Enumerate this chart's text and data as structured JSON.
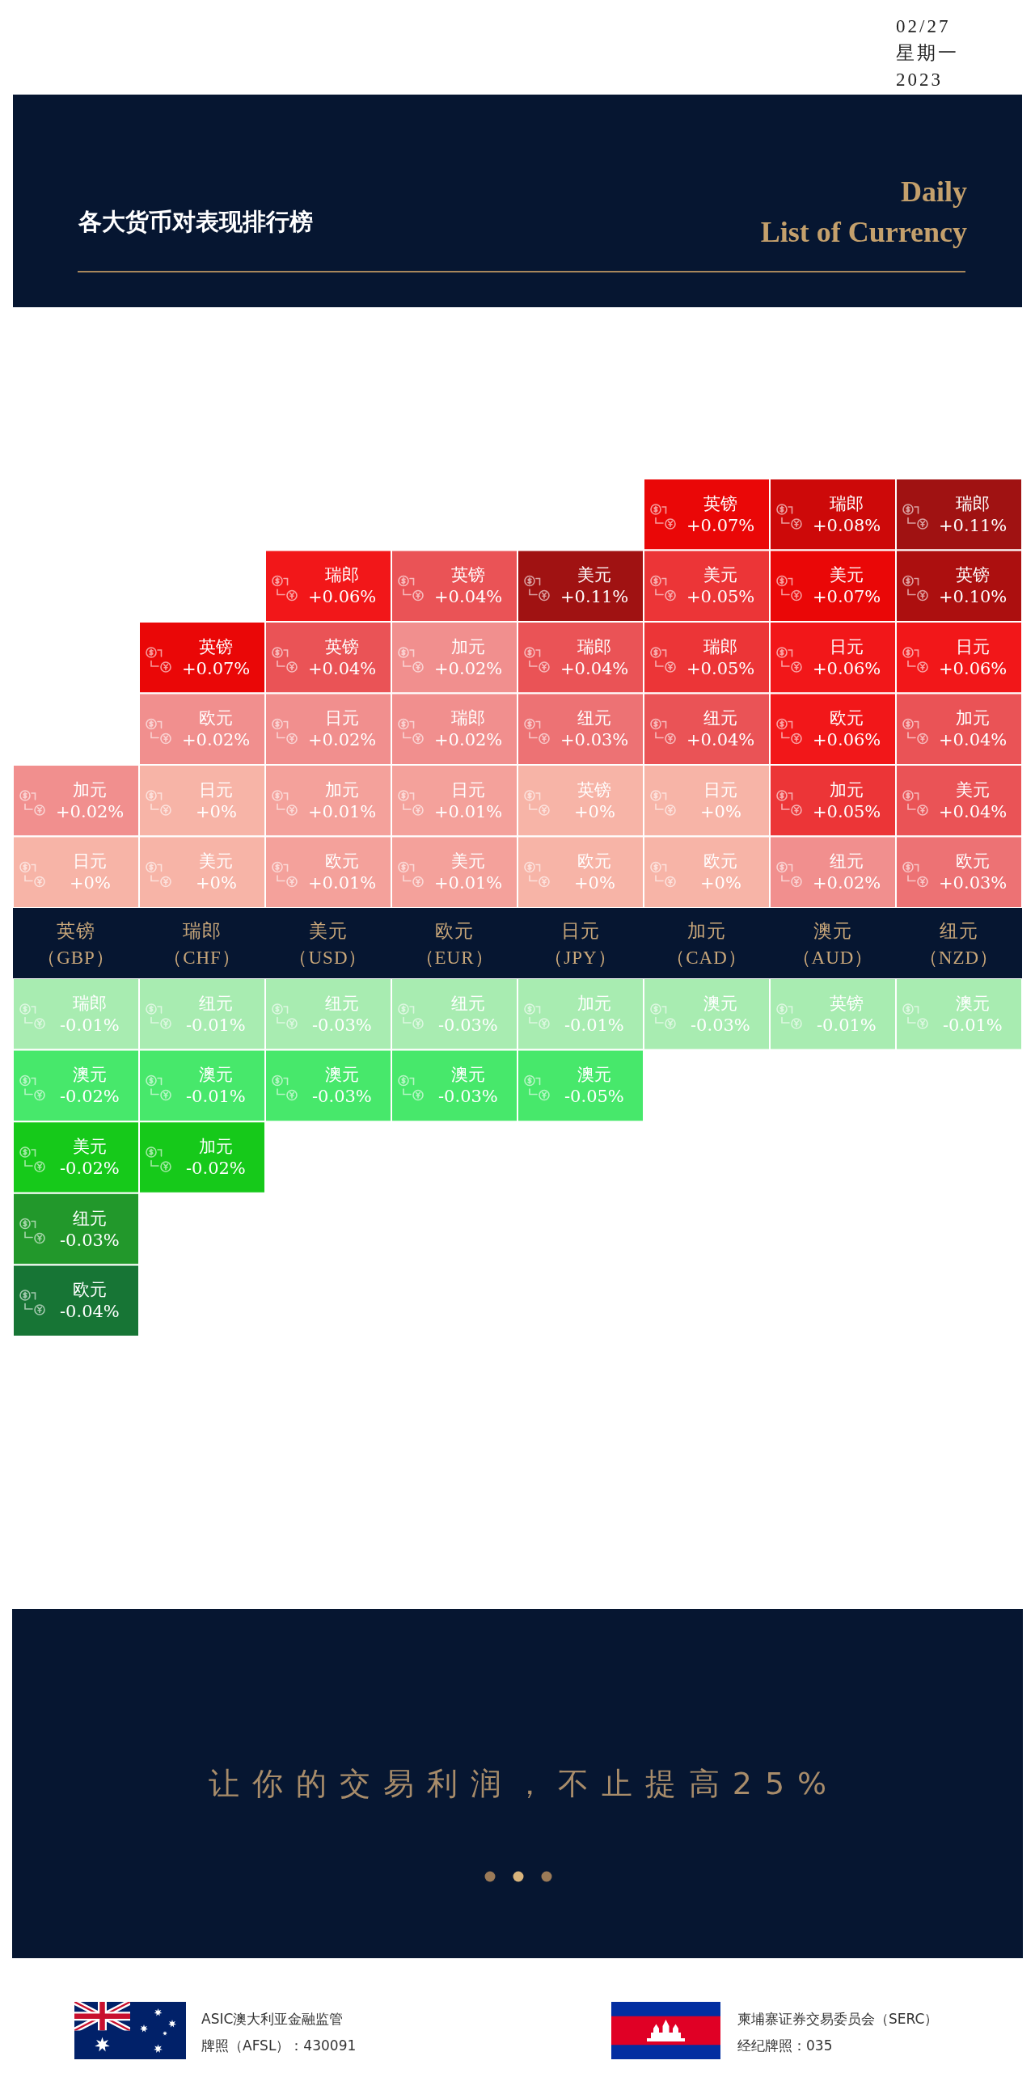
{
  "chart_data": [
    {
      "type": "heatmap",
      "title": "各大货币对表现排行榜",
      "subtitle": "Daily\nList of Currency",
      "annotations": [
        "02/27\n星期一\n2023",
        "让你的交易利润，不止提高25%",
        "ASIC澳大利亚金融监管",
        "牌照（AFSL）：430091",
        "柬埔寨证券交易委员会（SERC）",
        "经纪牌照：035"
      ],
      "categories": [
        "英镑（GBP）",
        "瑞郎（CHF）",
        "美元（USD）",
        "欧元（EUR）",
        "日元（JPY）",
        "加元（CAD）",
        "澳元（AUD）",
        "纽元（NZD）"
      ],
      "y_categories": [
        null,
        null,
        null,
        null,
        null,
        null
      ],
      "cells": [
        [
          null,
          null,
          null,
          null,
          null,
          0.07,
          0.08,
          0.11
        ],
        [
          null,
          null,
          0.06,
          0.04,
          0.11,
          0.05,
          0.07,
          0.1
        ],
        [
          null,
          0.07,
          0.04,
          0.02,
          0.04,
          0.05,
          0.06,
          0.06
        ],
        [
          null,
          0.02,
          0.02,
          0.02,
          0.03,
          0.04,
          0.06,
          0.04
        ],
        [
          0.02,
          0,
          0.01,
          0.01,
          0,
          0,
          0.05,
          0.04
        ],
        [
          0,
          0,
          0.01,
          0.01,
          0,
          0,
          0.02,
          0.03
        ]
      ],
      "cell_labels": [
        [
          null,
          null,
          null,
          null,
          null,
          "英镑\n+0.07%",
          "瑞郎\n+0.08%",
          "瑞郎\n+0.11%"
        ],
        [
          null,
          null,
          "瑞郎\n+0.06%",
          "英镑\n+0.04%",
          "美元\n+0.11%",
          "美元\n+0.05%",
          "美元\n+0.07%",
          "英镑\n+0.10%"
        ],
        [
          null,
          "英镑\n+0.07%",
          "英镑\n+0.04%",
          "加元\n+0.02%",
          "瑞郎\n+0.04%",
          "瑞郎\n+0.05%",
          "日元\n+0.06%",
          "日元\n+0.06%"
        ],
        [
          null,
          "欧元\n+0.02%",
          "日元\n+0.02%",
          "瑞郎\n+0.02%",
          "纽元\n+0.03%",
          "纽元\n+0.04%",
          "欧元\n+0.06%",
          "加元\n+0.04%"
        ],
        [
          "加元\n+0.02%",
          "日元\n+0%",
          "加元\n+0.01%",
          "日元\n+0.01%",
          "英镑\n+0%",
          "日元\n+0%",
          "加元\n+0.05%",
          "美元\n+0.04%"
        ],
        [
          "日元\n+0%",
          "美元\n+0%",
          "欧元\n+0.01%",
          "美元\n+0.01%",
          "欧元\n+0%",
          "欧元\n+0%",
          "纽元\n+0.02%",
          "欧元\n+0.03%"
        ]
      ]
    },
    {
      "type": "other",
      "cell_labels": [
        [
          "瑞郎\n-0.01%",
          "纽元\n-0.01%",
          "纽元\n-0.03%",
          "纽元\n-0.03%",
          "加元\n-0.01%",
          "澳元\n-0.03%",
          "英镑\n-0.01%",
          "澳元\n-0.01%"
        ],
        [
          "澳元\n-0.02%",
          "澳元\n-0.01%",
          "澳元\n-0.03%",
          "澳元\n-0.03%",
          "澳元\n-0.05%",
          null,
          null,
          null
        ],
        [
          "美元\n-0.02%",
          "加元\n-0.02%",
          null,
          null,
          null,
          null,
          null,
          null
        ],
        [
          "纽元\n-0.03%",
          null,
          null,
          null,
          null,
          null,
          null,
          null
        ],
        [
          "欧元\n-0.04%",
          null,
          null,
          null,
          null,
          null,
          null,
          null
        ]
      ],
      "colors": [
        [
          "#a8ecb1",
          "#a8ecb1",
          "#a8ecb1",
          "#a8ecb1",
          "#a8ecb1",
          "#a8ecb1",
          "#a8ecb1",
          "#a8ecb1"
        ],
        [
          "#47e86b",
          "#47e86b",
          "#47e86b",
          "#47e86b",
          "#47e86b",
          null,
          null,
          null
        ],
        [
          "#16c91a",
          "#16c91a",
          null,
          null,
          null,
          null,
          null,
          null
        ],
        [
          "#22982b",
          null,
          null,
          null,
          null,
          null,
          null,
          null
        ],
        [
          "#177535",
          null,
          null,
          null,
          null,
          null,
          null,
          null
        ]
      ]
    }
  ]
}
